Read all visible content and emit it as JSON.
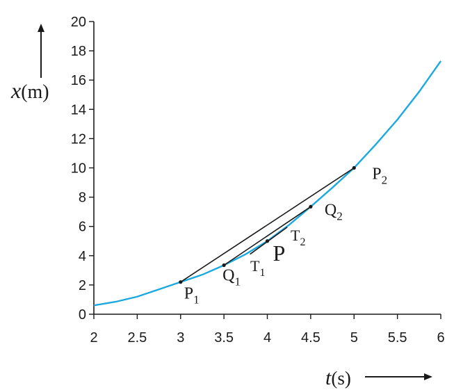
{
  "chart_data": {
    "type": "line",
    "xlabel": {
      "var": "t",
      "unit": "(s)"
    },
    "ylabel": {
      "var": "x",
      "unit": "(m)"
    },
    "xlim": [
      2,
      6
    ],
    "ylim": [
      0,
      20
    ],
    "xticks": [
      "2",
      "2.5",
      "3",
      "3.5",
      "4",
      "4.5",
      "5",
      "5.5",
      "6"
    ],
    "yticks": [
      "0",
      "2",
      "4",
      "6",
      "8",
      "10",
      "12",
      "14",
      "16",
      "18",
      "20"
    ],
    "curve": {
      "color": "#1ba9e0",
      "x": [
        2,
        2.25,
        2.5,
        2.75,
        3,
        3.25,
        3.5,
        3.75,
        4,
        4.25,
        4.5,
        4.75,
        5,
        5.25,
        5.5,
        5.75,
        6
      ],
      "y": [
        0.6,
        0.85,
        1.2,
        1.7,
        2.2,
        2.7,
        3.35,
        4.1,
        5.0,
        6.1,
        7.35,
        8.65,
        10.0,
        11.6,
        13.3,
        15.2,
        17.3
      ]
    },
    "points": [
      {
        "name": "P1",
        "label": "P",
        "sub": "1",
        "x": 3,
        "y": 2.2
      },
      {
        "name": "P2",
        "label": "P",
        "sub": "2",
        "x": 5,
        "y": 10.0
      },
      {
        "name": "Q1",
        "label": "Q",
        "sub": "1",
        "x": 3.5,
        "y": 3.35
      },
      {
        "name": "Q2",
        "label": "Q",
        "sub": "2",
        "x": 4.5,
        "y": 7.35
      },
      {
        "name": "P",
        "label": "P",
        "sub": "",
        "x": 4,
        "y": 5.0
      }
    ],
    "chords": [
      {
        "name": "P1-P2",
        "from": [
          3,
          2.2
        ],
        "to": [
          5,
          10.0
        ]
      },
      {
        "name": "Q1-Q2",
        "from": [
          3.5,
          3.35
        ],
        "to": [
          4.5,
          7.35
        ]
      }
    ],
    "tangent": {
      "from": [
        3.8,
        4.1
      ],
      "to": [
        4.23,
        5.95
      ]
    },
    "tangent_labels": [
      {
        "name": "T1",
        "label": "T",
        "sub": "1"
      },
      {
        "name": "T2",
        "label": "T",
        "sub": "2"
      }
    ],
    "grid": false
  }
}
